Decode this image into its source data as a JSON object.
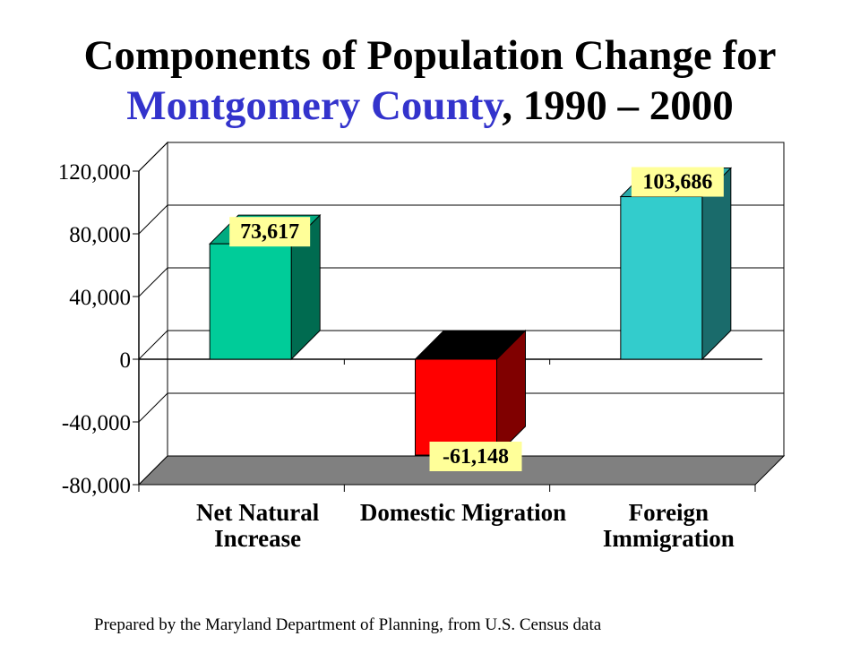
{
  "title": {
    "line1": "Components of Population Change for",
    "highlight": "Montgomery County",
    "rest": ", 1990 – 2000",
    "highlight_color": "#3333cc"
  },
  "chart_data": {
    "type": "bar",
    "title": "Components of Population Change for Montgomery County, 1990 – 2000",
    "categories": [
      [
        "Net Natural",
        "Increase"
      ],
      [
        "Domestic Migration"
      ],
      [
        "Foreign",
        "Immigration"
      ]
    ],
    "values": [
      73617,
      -61148,
      103686
    ],
    "value_labels": [
      "73,617",
      "-61,148",
      "103,686"
    ],
    "ylim": [
      -80000,
      120000
    ],
    "yticks": [
      120000,
      80000,
      40000,
      0,
      -40000,
      -80000
    ],
    "ytick_labels": [
      "120,000",
      "80,000",
      "40,000",
      "0",
      "-40,000",
      "-80,000"
    ],
    "grid": true,
    "style": "3d",
    "colors": {
      "bars": [
        "#00cc99",
        "#ff0000",
        "#33cccc"
      ],
      "bar_sides": [
        "#006b50",
        "#800000",
        "#1a6b6b"
      ],
      "bar_tops": [
        "#00aa80",
        "#000000",
        "#2aaaaa"
      ],
      "label_bg": "#ffff99",
      "floor": "#808080"
    }
  },
  "footnote": "Prepared by the Maryland Department of Planning, from U.S. Census data"
}
